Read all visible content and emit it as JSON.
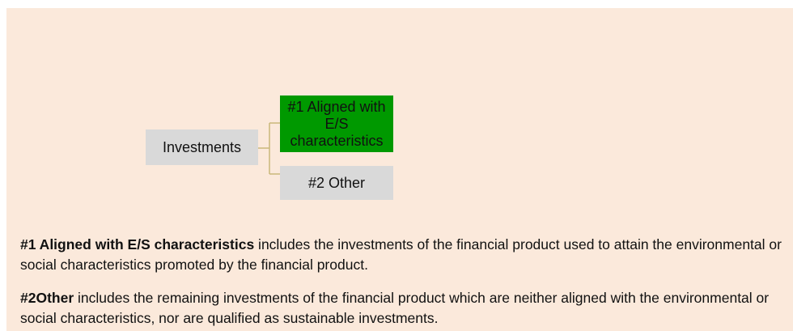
{
  "nodes": [
    {
      "label": "Investments"
    },
    {
      "label": "#1 Aligned with E/S characteristics"
    },
    {
      "label": "#2 Other"
    }
  ],
  "notes": [
    {
      "term": "#1 Aligned with E/S characteristics",
      "text": " includes the investments of the financial product used to attain the environmental or social characteristics promoted by the financial product."
    },
    {
      "term": "#2Other",
      "text": " includes the remaining investments of the financial product which are neither aligned with the environmental or social characteristics, nor are qualified as sustainable investments."
    }
  ]
}
